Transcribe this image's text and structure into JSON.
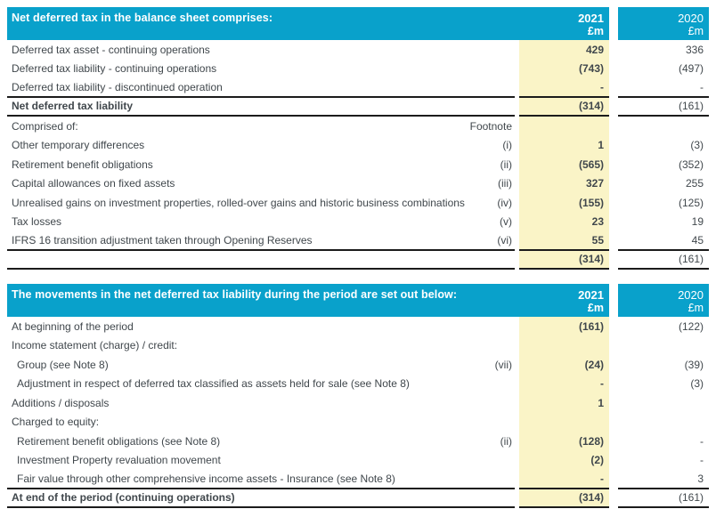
{
  "colors": {
    "header_blue": "#09a1cb",
    "highlight_yellow": "#faf4c7",
    "text": "#40474c",
    "rule": "#1b1b1b",
    "header_text": "#ffffff"
  },
  "columns": {
    "year_current": "2021",
    "year_prior": "2020",
    "unit_current": "£m",
    "unit_prior": "£m",
    "footnote_header": "Footnote"
  },
  "table1": {
    "title": "Net deferred tax in the balance sheet comprises:",
    "rows": [
      {
        "label": "Deferred tax asset - continuing operations",
        "footnote": "",
        "v2021": "429",
        "v2020": "336"
      },
      {
        "label": "Deferred tax liability - continuing operations",
        "footnote": "",
        "v2021": "(743)",
        "v2020": "(497)"
      },
      {
        "label": "Deferred tax liability - discontinued operation",
        "footnote": "",
        "v2021": "-",
        "v2020": "-",
        "rule": true
      },
      {
        "label": "Net deferred tax liability",
        "footnote": "",
        "v2021": "(314)",
        "v2020": "(161)",
        "bold": true,
        "rule": true
      },
      {
        "label": "Comprised of:",
        "footnote": "Footnote",
        "v2021": "",
        "v2020": ""
      },
      {
        "label": "Other temporary differences",
        "footnote": "(i)",
        "v2021": "1",
        "v2020": "(3)"
      },
      {
        "label": "Retirement benefit obligations",
        "footnote": "(ii)",
        "v2021": "(565)",
        "v2020": "(352)"
      },
      {
        "label": "Capital allowances on fixed assets",
        "footnote": "(iii)",
        "v2021": "327",
        "v2020": "255"
      },
      {
        "label": "Unrealised gains on investment properties, rolled-over gains and historic business combinations",
        "footnote": "(iv)",
        "v2021": "(155)",
        "v2020": "(125)"
      },
      {
        "label": "Tax losses",
        "footnote": "(v)",
        "v2021": "23",
        "v2020": "19"
      },
      {
        "label": "IFRS 16 transition adjustment taken through Opening Reserves",
        "footnote": "(vi)",
        "v2021": "55",
        "v2020": "45",
        "rule": true
      },
      {
        "label": "",
        "footnote": "",
        "v2021": "(314)",
        "v2020": "(161)",
        "rule": true
      }
    ]
  },
  "table2": {
    "title": "The movements in the net deferred tax liability during the period are set out below:",
    "rows": [
      {
        "label": "At beginning of the period",
        "footnote": "",
        "v2021": "(161)",
        "v2020": "(122)"
      },
      {
        "label": "Income statement (charge) / credit:",
        "footnote": "",
        "v2021": "",
        "v2020": ""
      },
      {
        "label": "Group (see Note 8)",
        "footnote": "(vii)",
        "v2021": "(24)",
        "v2020": "(39)",
        "indent": true
      },
      {
        "label": "Adjustment in respect of deferred tax classified as assets held for sale (see Note 8)",
        "footnote": "",
        "v2021": "-",
        "v2020": "(3)",
        "indent": true
      },
      {
        "label": "Additions / disposals",
        "footnote": "",
        "v2021": "1",
        "v2020": ""
      },
      {
        "label": "Charged to equity:",
        "footnote": "",
        "v2021": "",
        "v2020": ""
      },
      {
        "label": "Retirement benefit obligations (see Note 8)",
        "footnote": "(ii)",
        "v2021": "(128)",
        "v2020": "-",
        "indent": true
      },
      {
        "label": "Investment Property revaluation movement",
        "footnote": "",
        "v2021": "(2)",
        "v2020": "-",
        "indent": true
      },
      {
        "label": "Fair value through other comprehensive income assets - Insurance (see Note 8)",
        "footnote": "",
        "v2021": "-",
        "v2020": "3",
        "indent": true,
        "rule": true
      },
      {
        "label": "At end of the period (continuing operations)",
        "footnote": "",
        "v2021": "(314)",
        "v2020": "(161)",
        "bold": true,
        "rule": true
      }
    ]
  }
}
